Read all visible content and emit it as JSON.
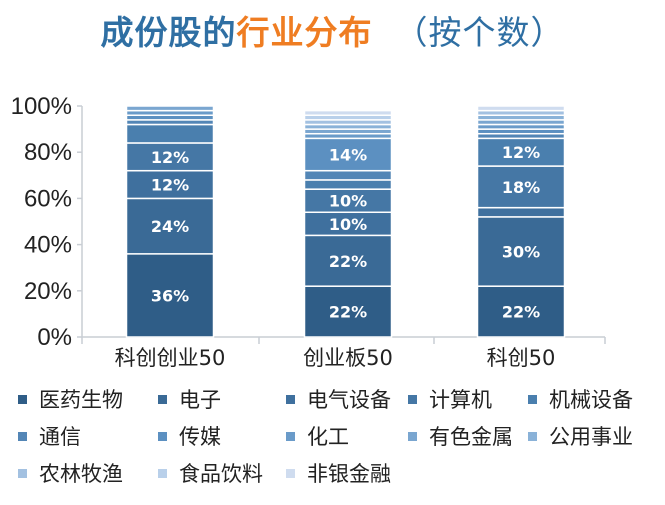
{
  "title": {
    "part1": "成份股的",
    "part2": "行业分布",
    "part3": "（按个数）"
  },
  "chart_data": {
    "type": "bar",
    "stacked": true,
    "categories": [
      "科创创业50",
      "创业板50",
      "科创50"
    ],
    "ylim": [
      0,
      100
    ],
    "yticks": [
      "0%",
      "20%",
      "40%",
      "60%",
      "80%",
      "100%"
    ],
    "grid": false,
    "legend_position": "bottom",
    "series": [
      {
        "name": "医药生物",
        "color": "#2f5d87",
        "values": [
          36,
          22,
          22
        ],
        "labels": [
          "36%",
          "22%",
          "22%"
        ]
      },
      {
        "name": "电子",
        "color": "#3a6a96",
        "values": [
          24,
          22,
          30
        ],
        "labels": [
          "24%",
          "22%",
          "30%"
        ]
      },
      {
        "name": "电气设备",
        "color": "#3f709e",
        "values": [
          12,
          10,
          4
        ],
        "labels": [
          "12%",
          "10%",
          ""
        ]
      },
      {
        "name": "计算机",
        "color": "#4577a5",
        "values": [
          12,
          10,
          18
        ],
        "labels": [
          "12%",
          "10%",
          "18%"
        ]
      },
      {
        "name": "机械设备",
        "color": "#4a7fae",
        "values": [
          8,
          4,
          12
        ],
        "labels": [
          "",
          "",
          "12%"
        ]
      },
      {
        "name": "通信",
        "color": "#5386b6",
        "values": [
          2,
          4,
          2
        ],
        "labels": [
          "",
          "",
          ""
        ]
      },
      {
        "name": "传媒",
        "color": "#5c90c1",
        "values": [
          2,
          14,
          2
        ],
        "labels": [
          "",
          "14%",
          ""
        ]
      },
      {
        "name": "化工",
        "color": "#6a9bc9",
        "values": [
          2,
          2,
          2
        ],
        "labels": [
          "",
          "",
          ""
        ]
      },
      {
        "name": "有色金属",
        "color": "#7aa6d0",
        "values": [
          2,
          2,
          2
        ],
        "labels": [
          "",
          "",
          ""
        ]
      },
      {
        "name": "公用事业",
        "color": "#8ab2d8",
        "values": [
          0,
          2,
          2
        ],
        "labels": [
          "",
          "",
          ""
        ]
      },
      {
        "name": "农林牧渔",
        "color": "#a3c1e1",
        "values": [
          0,
          2,
          2
        ],
        "labels": [
          "",
          "",
          ""
        ]
      },
      {
        "name": "食品饮料",
        "color": "#b9d0ea",
        "values": [
          0,
          2,
          0
        ],
        "labels": [
          "",
          "",
          ""
        ]
      },
      {
        "name": "非银金融",
        "color": "#cfdcef",
        "values": [
          0,
          2,
          2
        ],
        "labels": [
          "",
          "",
          ""
        ]
      }
    ]
  }
}
